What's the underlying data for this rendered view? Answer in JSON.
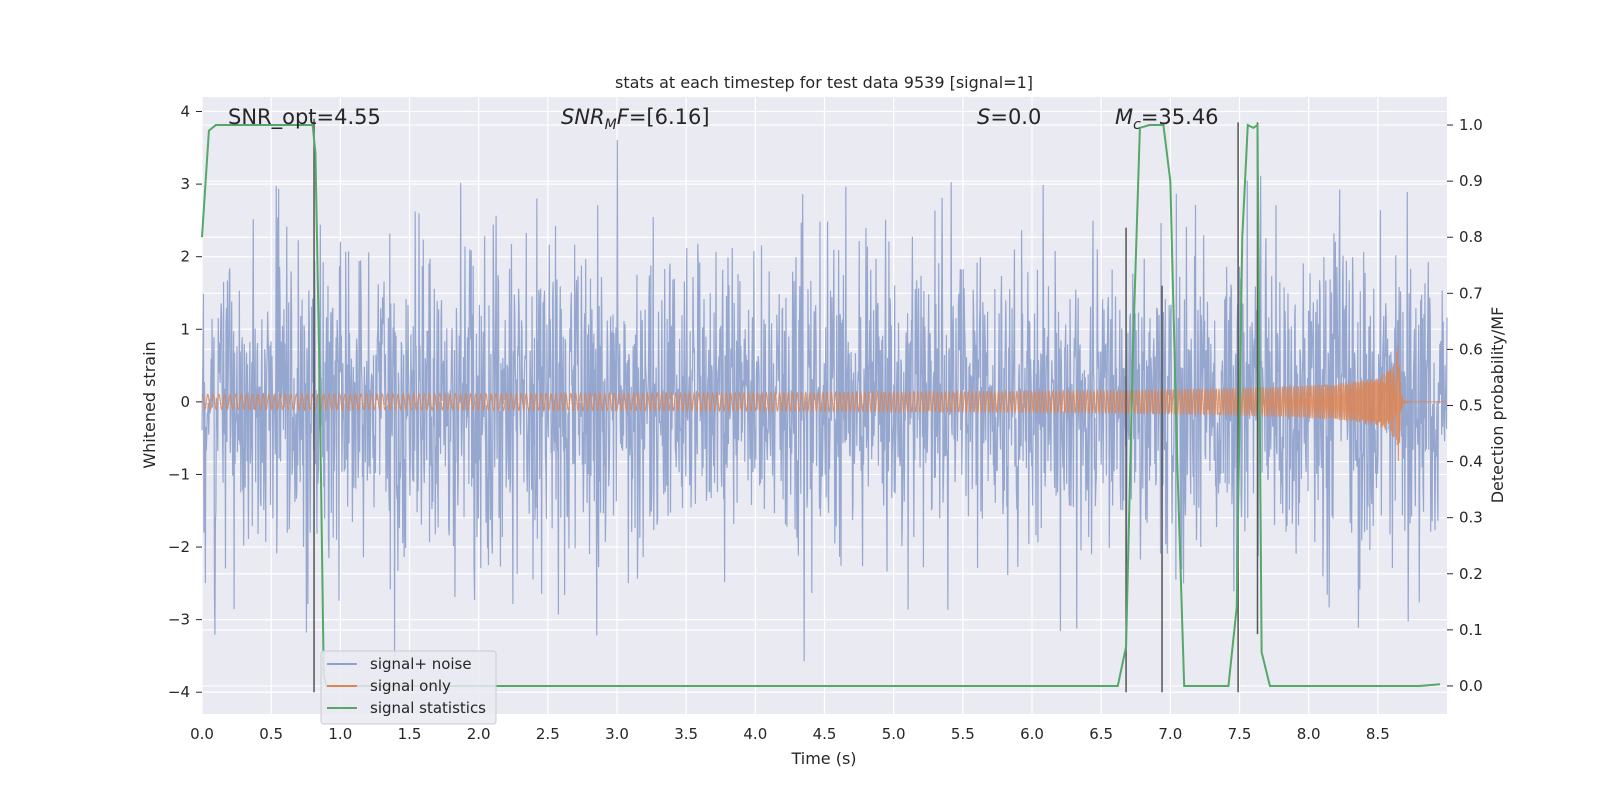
{
  "chart_data": {
    "type": "line",
    "title": "stats at each timestep for test data 9539 [signal=1]",
    "xlabel": "Time (s)",
    "ylabel": "Whitened strain",
    "ylabel_right": "Detection probability/MF",
    "xlim": [
      0.0,
      9.0
    ],
    "ylim": [
      -4.3,
      4.2
    ],
    "ylim_right": [
      -0.05,
      1.05
    ],
    "x_ticks": [
      "0.0",
      "0.5",
      "1.0",
      "1.5",
      "2.0",
      "2.5",
      "3.0",
      "3.5",
      "4.0",
      "4.5",
      "5.0",
      "5.5",
      "6.0",
      "6.5",
      "7.0",
      "7.5",
      "8.0",
      "8.5"
    ],
    "x_tick_values": [
      0.0,
      0.5,
      1.0,
      1.5,
      2.0,
      2.5,
      3.0,
      3.5,
      4.0,
      4.5,
      5.0,
      5.5,
      6.0,
      6.5,
      7.0,
      7.5,
      8.0,
      8.5
    ],
    "y_ticks": [
      "−4",
      "−3",
      "−2",
      "−1",
      "0",
      "1",
      "2",
      "3",
      "4"
    ],
    "y_tick_values": [
      -4,
      -3,
      -2,
      -1,
      0,
      1,
      2,
      3,
      4
    ],
    "y_right_ticks": [
      "0.0",
      "0.1",
      "0.2",
      "0.3",
      "0.4",
      "0.5",
      "0.6",
      "0.7",
      "0.8",
      "0.9",
      "1.0"
    ],
    "y_right_tick_values": [
      0.0,
      0.1,
      0.2,
      0.3,
      0.4,
      0.5,
      0.6,
      0.7,
      0.8,
      0.9,
      1.0
    ],
    "grid": true,
    "legend_position": "bottom-left",
    "series": [
      {
        "name": "signal+ noise",
        "color": "#8da0cb",
        "axis": "left",
        "description": "whitened noise, approx. Gaussian with sd ~1, peaks to about ±3.8"
      },
      {
        "name": "signal only",
        "color": "#dd8452",
        "axis": "left",
        "chirp_merger_time": 8.65,
        "chirp_peak_amplitude": 1.05
      },
      {
        "name": "signal statistics",
        "color": "#55a868",
        "axis": "right",
        "x": [
          0.0,
          0.05,
          0.1,
          0.2,
          0.3,
          0.5,
          0.7,
          0.8,
          0.82,
          0.85,
          0.88,
          0.9,
          1.0,
          1.5,
          2.0,
          3.0,
          4.0,
          5.0,
          6.0,
          6.5,
          6.62,
          6.68,
          6.73,
          6.78,
          6.85,
          6.9,
          6.95,
          7.0,
          7.05,
          7.1,
          7.3,
          7.42,
          7.48,
          7.52,
          7.56,
          7.6,
          7.63,
          7.66,
          7.72,
          7.8,
          8.0,
          8.5,
          8.8,
          8.95
        ],
        "values": [
          0.8,
          0.99,
          1.0,
          1.0,
          1.0,
          1.0,
          1.0,
          1.0,
          0.95,
          0.55,
          0.02,
          0.0,
          0.0,
          0.0,
          0.0,
          0.0,
          0.0,
          0.0,
          0.0,
          0.0,
          0.0,
          0.07,
          0.6,
          0.995,
          1.0,
          1.0,
          1.0,
          0.9,
          0.4,
          0.0,
          0.0,
          0.0,
          0.14,
          0.8,
          1.0,
          0.995,
          1.0,
          0.06,
          0.0,
          0.0,
          0.0,
          0.0,
          0.0,
          0.003
        ]
      }
    ],
    "vertical_lines": [
      {
        "x": 0.81,
        "y_from": -4.0,
        "y_to": 3.9
      },
      {
        "x": 6.68,
        "y_from": -4.0,
        "y_to": 2.4
      },
      {
        "x": 6.94,
        "y_from": -4.0,
        "y_to": 1.6
      },
      {
        "x": 7.49,
        "y_from": -4.0,
        "y_to": 3.85
      },
      {
        "x": 7.63,
        "y_from": -3.2,
        "y_to": 3.85
      }
    ],
    "annotations": [
      {
        "id": "snr-opt",
        "text": "SNR_opt=4.55"
      },
      {
        "id": "snr-mf",
        "prefix": "SNR",
        "sub": "M",
        "suffix": "F=[6.16]"
      },
      {
        "id": "s-stat",
        "prefix": "S",
        "suffix": "=0.0"
      },
      {
        "id": "mc",
        "prefix": "M",
        "sub": "c",
        "suffix": "=35.46"
      }
    ],
    "colors": {
      "background": "#eaeaf2",
      "grid": "#ffffff",
      "vline": "#555555"
    }
  }
}
